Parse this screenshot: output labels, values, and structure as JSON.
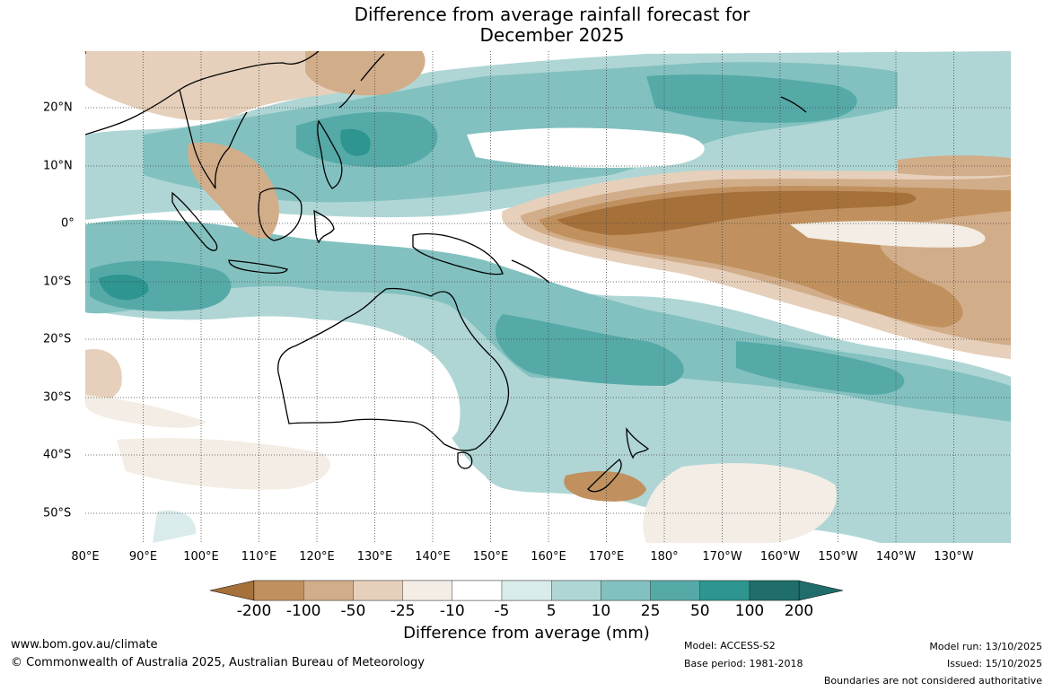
{
  "title": {
    "line1": "Difference from average rainfall forecast for",
    "line2": "December 2025"
  },
  "map": {
    "longitude_labels": [
      "80°E",
      "90°E",
      "100°E",
      "110°E",
      "120°E",
      "130°E",
      "140°E",
      "150°E",
      "160°E",
      "170°E",
      "180°",
      "170°W",
      "160°W",
      "150°W",
      "140°W",
      "130°W"
    ],
    "latitude_labels": [
      "20°N",
      "10°N",
      "0°",
      "10°S",
      "20°S",
      "30°S",
      "40°S",
      "50°S"
    ]
  },
  "colorbar": {
    "ticks": [
      "-200",
      "-100",
      "-50",
      "-25",
      "-10",
      "-5",
      "5",
      "10",
      "25",
      "50",
      "100",
      "200"
    ],
    "colors": [
      "#a6703a",
      "#c0915e",
      "#d2ad8a",
      "#e6d0bb",
      "#f3ede5",
      "#ffffff",
      "#d9ebea",
      "#afd6d5",
      "#82c1bf",
      "#55aaa8",
      "#2e9590",
      "#1f6e6b"
    ],
    "label": "Difference from average (mm)"
  },
  "footer": {
    "url": "www.bom.gov.au/climate",
    "copyright": "© Commonwealth of Australia 2025, Australian Bureau of Meteorology",
    "model": "Model: ACCESS-S2",
    "base_period": "Base period: 1981-2018",
    "model_run": "Model run: 13/10/2025",
    "issued": "Issued: 15/10/2025",
    "disclaimer": "Boundaries are not considered authoritative"
  }
}
